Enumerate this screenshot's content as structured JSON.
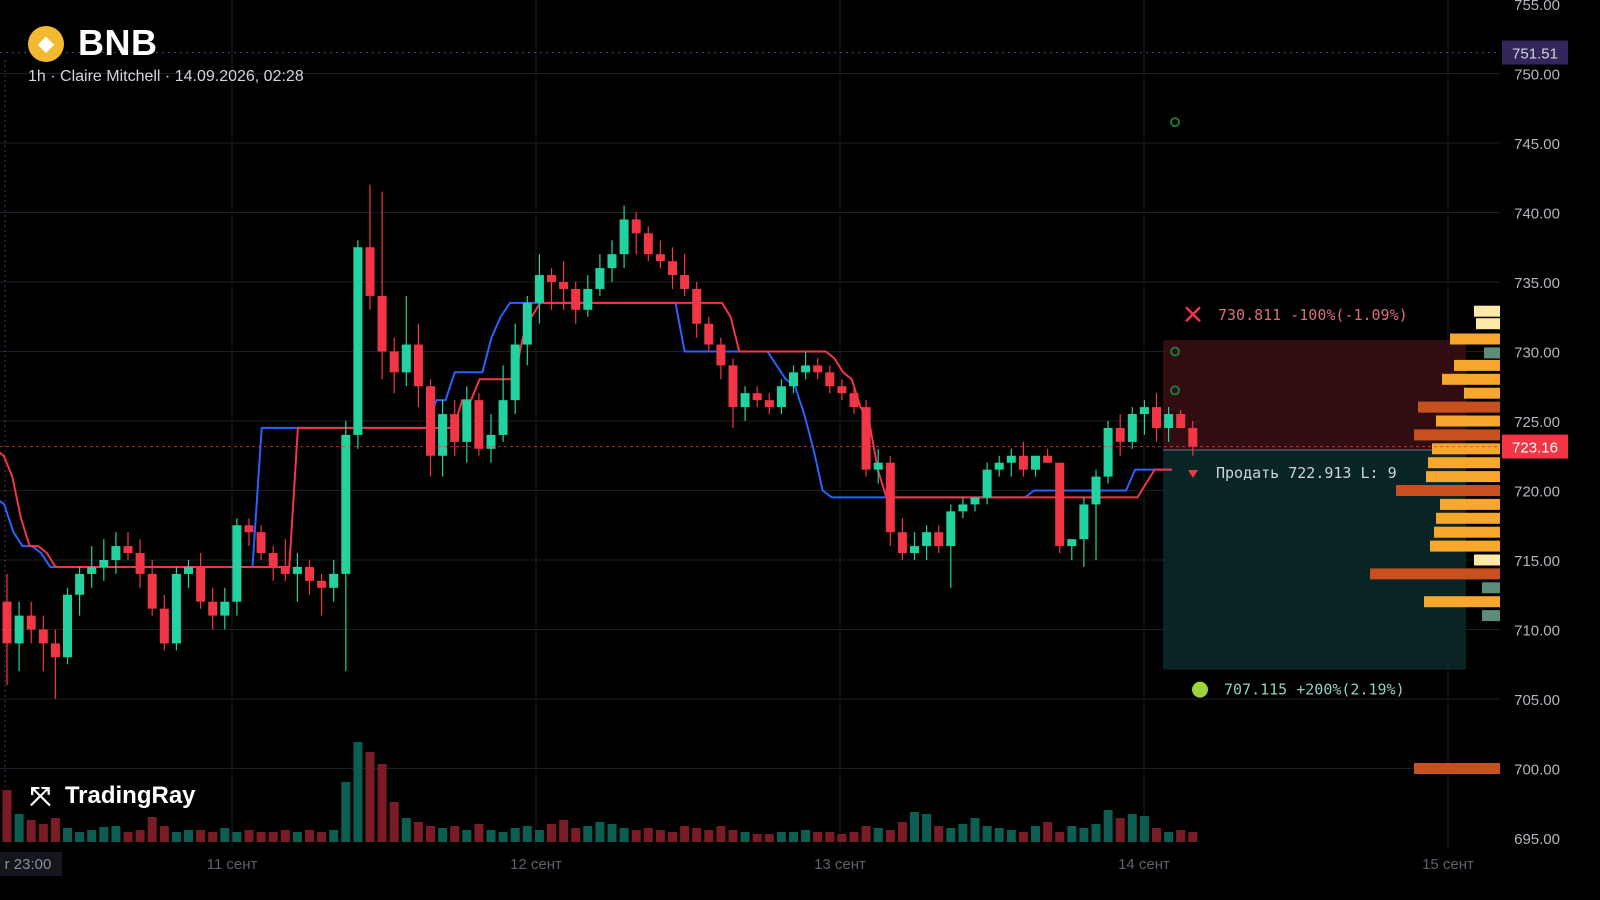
{
  "header": {
    "symbol": "BNB",
    "subtitle": "1h · Claire Mitchell · 14.09.2026, 02:28",
    "logo_icon": "binance-coin-icon"
  },
  "brand": {
    "name": "TradingRay",
    "icon": "tradingray-logo-icon"
  },
  "colors": {
    "up": "#089981",
    "down": "#f23645",
    "blue_line": "#2962ff",
    "red_line": "#f23645",
    "last_price_bg": "#f23645",
    "marker_bg": "#33265b",
    "stop_zone": "#3a0f14",
    "target_zone": "#0a2a2c"
  },
  "price_axis": {
    "ticks": [
      "755.00",
      "750.00",
      "745.00",
      "740.00",
      "735.00",
      "730.00",
      "725.00",
      "720.00",
      "715.00",
      "710.00",
      "705.00",
      "700.00",
      "695.00"
    ],
    "last_price_label": "723.16",
    "marker_label": "751.51"
  },
  "time_axis": {
    "labels": [
      "r 23:00",
      "11 сент",
      "12 сент",
      "13 сент",
      "14 сент",
      "15 сент"
    ]
  },
  "position": {
    "stop_text": "730.811 -100%(-1.09%)",
    "entry_text": "Продать 722.913 L: 9",
    "target_text": "707.115 +200%(2.19%)",
    "stop_icon": "close-x-icon",
    "target_icon": "apple-icon",
    "entry_icon": "triangle-down-icon"
  },
  "chart_data": {
    "type": "candlestick",
    "timeframe": "1h",
    "ylim": [
      695,
      755
    ],
    "ohlc": [
      [
        712.0,
        714.0,
        706.0,
        709.0
      ],
      [
        709.0,
        712.0,
        707.0,
        711.0
      ],
      [
        711.0,
        712.0,
        709.0,
        710.0
      ],
      [
        710.0,
        711.0,
        707.0,
        709.0
      ],
      [
        709.0,
        710.0,
        705.0,
        708.0
      ],
      [
        708.0,
        713.0,
        707.5,
        712.5
      ],
      [
        712.5,
        714.5,
        711.0,
        714.0
      ],
      [
        714.0,
        716.0,
        713.0,
        714.5
      ],
      [
        714.5,
        716.5,
        713.5,
        715.0
      ],
      [
        715.0,
        717.0,
        714.0,
        716.0
      ],
      [
        716.0,
        717.0,
        715.0,
        715.5
      ],
      [
        715.5,
        716.5,
        713.0,
        714.0
      ],
      [
        714.0,
        715.0,
        711.0,
        711.5
      ],
      [
        711.5,
        712.5,
        708.5,
        709.0
      ],
      [
        709.0,
        714.5,
        708.5,
        714.0
      ],
      [
        714.0,
        715.0,
        713.0,
        714.5
      ],
      [
        714.5,
        715.5,
        711.5,
        712.0
      ],
      [
        712.0,
        713.0,
        710.0,
        711.0
      ],
      [
        711.0,
        713.0,
        710.0,
        712.0
      ],
      [
        712.0,
        718.0,
        711.0,
        717.5
      ],
      [
        717.5,
        718.0,
        716.0,
        717.0
      ],
      [
        717.0,
        717.5,
        715.0,
        715.5
      ],
      [
        715.5,
        716.0,
        713.5,
        714.5
      ],
      [
        714.5,
        716.5,
        713.5,
        714.0
      ],
      [
        714.0,
        715.5,
        712.0,
        714.5
      ],
      [
        714.5,
        715.0,
        712.5,
        713.5
      ],
      [
        713.5,
        714.0,
        711.0,
        713.0
      ],
      [
        713.0,
        715.0,
        712.0,
        714.0
      ],
      [
        714.0,
        725.0,
        707.0,
        724.0
      ],
      [
        724.0,
        738.0,
        723.0,
        737.5
      ],
      [
        737.5,
        742.0,
        733.0,
        734.0
      ],
      [
        734.0,
        741.5,
        728.0,
        730.0
      ],
      [
        730.0,
        731.0,
        727.0,
        728.5
      ],
      [
        728.5,
        734.0,
        727.5,
        730.5
      ],
      [
        730.5,
        732.0,
        726.0,
        727.5
      ],
      [
        727.5,
        728.0,
        721.0,
        722.5
      ],
      [
        722.5,
        726.5,
        721.0,
        725.5
      ],
      [
        725.5,
        726.5,
        722.5,
        723.5
      ],
      [
        723.5,
        727.5,
        722.0,
        726.5
      ],
      [
        726.5,
        727.0,
        722.5,
        723.0
      ],
      [
        723.0,
        725.5,
        722.0,
        724.0
      ],
      [
        724.0,
        729.0,
        723.5,
        726.5
      ],
      [
        726.5,
        732.0,
        725.5,
        730.5
      ],
      [
        730.5,
        734.0,
        729.0,
        733.5
      ],
      [
        733.5,
        737.0,
        732.0,
        735.5
      ],
      [
        735.5,
        736.0,
        733.0,
        735.0
      ],
      [
        735.0,
        736.5,
        733.0,
        734.5
      ],
      [
        734.5,
        735.0,
        732.0,
        733.0
      ],
      [
        733.0,
        735.5,
        732.5,
        734.5
      ],
      [
        734.5,
        737.0,
        734.0,
        736.0
      ],
      [
        736.0,
        738.0,
        735.0,
        737.0
      ],
      [
        737.0,
        740.5,
        736.0,
        739.5
      ],
      [
        739.5,
        740.0,
        737.0,
        738.5
      ],
      [
        738.5,
        739.0,
        736.5,
        737.0
      ],
      [
        737.0,
        738.0,
        736.0,
        736.5
      ],
      [
        736.5,
        737.5,
        734.5,
        735.5
      ],
      [
        735.5,
        737.0,
        734.0,
        734.5
      ],
      [
        734.5,
        735.0,
        731.0,
        732.0
      ],
      [
        732.0,
        732.5,
        730.0,
        730.5
      ],
      [
        730.5,
        731.0,
        728.0,
        729.0
      ],
      [
        729.0,
        729.5,
        724.5,
        726.0
      ],
      [
        726.0,
        727.5,
        725.0,
        727.0
      ],
      [
        727.0,
        727.5,
        726.0,
        726.5
      ],
      [
        726.5,
        727.0,
        725.5,
        726.0
      ],
      [
        726.0,
        728.0,
        725.5,
        727.5
      ],
      [
        727.5,
        729.0,
        727.0,
        728.5
      ],
      [
        728.5,
        730.0,
        728.0,
        729.0
      ],
      [
        729.0,
        729.5,
        728.0,
        728.5
      ],
      [
        728.5,
        729.0,
        727.0,
        727.5
      ],
      [
        727.5,
        728.0,
        726.5,
        727.0
      ],
      [
        727.0,
        727.5,
        725.5,
        726.0
      ],
      [
        726.0,
        726.5,
        721.0,
        721.5
      ],
      [
        721.5,
        723.0,
        720.5,
        722.0
      ],
      [
        722.0,
        722.5,
        716.0,
        717.0
      ],
      [
        717.0,
        718.0,
        715.0,
        715.5
      ],
      [
        715.5,
        717.0,
        715.0,
        716.0
      ],
      [
        716.0,
        717.5,
        715.0,
        717.0
      ],
      [
        717.0,
        717.5,
        715.5,
        716.0
      ],
      [
        716.0,
        719.0,
        713.0,
        718.5
      ],
      [
        718.5,
        719.5,
        718.0,
        719.0
      ],
      [
        719.0,
        719.5,
        718.5,
        719.5
      ],
      [
        719.5,
        722.0,
        719.0,
        721.5
      ],
      [
        721.5,
        722.5,
        721.0,
        722.0
      ],
      [
        722.0,
        723.0,
        721.0,
        722.5
      ],
      [
        722.5,
        723.5,
        721.0,
        721.5
      ],
      [
        721.5,
        722.5,
        721.0,
        722.5
      ],
      [
        722.5,
        723.0,
        722.0,
        722.0
      ],
      [
        722.0,
        722.0,
        715.5,
        716.0
      ],
      [
        716.0,
        716.5,
        715.0,
        716.5
      ],
      [
        716.5,
        719.5,
        714.5,
        719.0
      ],
      [
        719.0,
        721.5,
        715.0,
        721.0
      ],
      [
        721.0,
        725.0,
        720.5,
        724.5
      ],
      [
        724.5,
        725.5,
        722.5,
        723.5
      ],
      [
        723.5,
        726.0,
        723.0,
        725.5
      ],
      [
        725.5,
        726.5,
        724.0,
        726.0
      ],
      [
        726.0,
        727.0,
        723.5,
        724.5
      ],
      [
        724.5,
        726.0,
        723.5,
        725.5
      ],
      [
        725.5,
        725.8,
        724.5,
        724.5
      ],
      [
        724.5,
        725.0,
        722.5,
        723.16
      ]
    ],
    "volume": [
      52,
      28,
      22,
      18,
      24,
      14,
      10,
      12,
      15,
      16,
      10,
      12,
      25,
      16,
      10,
      12,
      12,
      10,
      14,
      10,
      12,
      10,
      10,
      12,
      10,
      12,
      10,
      12,
      60,
      100,
      90,
      78,
      40,
      24,
      20,
      16,
      14,
      16,
      12,
      18,
      12,
      10,
      14,
      16,
      12,
      18,
      22,
      14,
      16,
      20,
      18,
      14,
      12,
      14,
      12,
      10,
      16,
      14,
      12,
      16,
      12,
      10,
      8,
      8,
      10,
      10,
      12,
      10,
      10,
      8,
      10,
      16,
      14,
      12,
      20,
      30,
      28,
      16,
      14,
      18,
      24,
      16,
      14,
      12,
      10,
      16,
      20,
      10,
      16,
      14,
      18,
      32,
      24,
      28,
      26,
      14,
      10,
      12,
      10,
      16,
      10,
      10,
      8
    ],
    "series": [
      {
        "values": [
          719.5,
          719.0,
          717.0,
          716.0,
          716.0,
          715.5,
          714.5,
          714.5,
          714.5,
          714.5,
          714.5,
          714.5,
          714.5,
          714.5,
          714.5,
          714.5,
          714.5,
          714.5,
          714.5,
          714.5,
          714.5,
          714.5,
          714.5,
          714.5,
          714.5,
          714.5,
          714.5,
          714.5,
          714.5,
          724.5,
          724.5,
          724.5,
          724.5,
          724.5,
          724.5,
          724.5,
          724.5,
          724.5,
          724.5,
          724.5,
          724.5,
          724.5,
          724.5,
          724.5,
          724.5,
          724.5,
          724.5,
          724.5,
          726.5,
          726.5,
          728.5,
          728.5,
          728.5,
          728.5,
          731.0,
          732.5,
          733.5,
          733.5,
          733.5,
          733.5,
          733.5,
          733.5,
          733.5,
          733.5,
          733.5,
          733.5,
          733.5,
          733.5,
          733.5,
          733.5,
          733.5,
          733.5,
          733.5,
          733.5,
          733.5,
          730.0,
          730.0,
          730.0,
          730.0,
          730.0,
          730.0,
          730.0,
          730.0,
          730.0,
          730.0,
          729.0,
          728.0,
          727.5,
          725.5,
          723.0,
          720.0,
          719.5,
          719.5,
          719.5,
          719.5,
          719.5,
          719.5,
          719.5,
          719.5,
          719.5,
          719.5,
          719.5,
          719.5,
          719.5,
          719.5,
          719.5,
          719.5,
          719.5,
          719.5,
          719.5,
          719.5,
          719.5,
          719.5,
          720.0,
          720.0,
          720.0,
          720.0,
          720.0,
          720.0,
          720.0,
          720.0,
          720.0,
          720.0,
          720.0,
          721.5,
          721.5,
          721.5,
          721.5,
          721.5
        ]
      },
      {
        "values": [
          723.0,
          722.5,
          721.0,
          718.0,
          716.0,
          716.0,
          715.5,
          714.5,
          714.5,
          714.5,
          714.5,
          714.5,
          714.5,
          714.5,
          714.5,
          714.5,
          714.5,
          714.5,
          714.5,
          714.5,
          714.5,
          714.5,
          714.5,
          714.5,
          714.5,
          714.5,
          714.5,
          714.5,
          714.5,
          714.5,
          714.5,
          714.5,
          714.5,
          714.5,
          714.5,
          724.5,
          724.5,
          724.5,
          724.5,
          724.5,
          724.5,
          724.5,
          724.5,
          724.5,
          724.5,
          724.5,
          724.5,
          724.5,
          724.5,
          724.5,
          724.5,
          724.5,
          724.5,
          724.5,
          726.5,
          726.5,
          728.0,
          728.0,
          728.0,
          728.0,
          728.0,
          731.0,
          732.5,
          733.5,
          733.5,
          733.5,
          733.5,
          733.5,
          733.5,
          733.5,
          733.5,
          733.5,
          733.5,
          733.5,
          733.5,
          733.5,
          733.5,
          733.5,
          733.5,
          733.5,
          733.5,
          733.5,
          733.5,
          733.5,
          733.5,
          732.5,
          730.0,
          730.0,
          730.0,
          730.0,
          730.0,
          730.0,
          730.0,
          730.0,
          730.0,
          730.0,
          730.0,
          729.5,
          728.5,
          728.0,
          726.0,
          725.0,
          721.5,
          719.5,
          719.5,
          719.5,
          719.5,
          719.5,
          719.5,
          719.5,
          719.5,
          719.5,
          719.5,
          719.5,
          719.5,
          719.5,
          719.5,
          719.5,
          719.5,
          719.5,
          719.5,
          719.5,
          719.5,
          719.5,
          719.5,
          719.5,
          719.5,
          719.5,
          719.5,
          719.5,
          719.5,
          719.5,
          719.5,
          720.5,
          721.5,
          721.5,
          721.5
        ]
      }
    ],
    "volume_profile": [
      {
        "price": 732.9,
        "width": 26,
        "color": "#ffe9a8"
      },
      {
        "price": 732.0,
        "width": 24,
        "color": "#ffe9a8"
      },
      {
        "price": 730.9,
        "width": 50,
        "color": "#f7a72b"
      },
      {
        "price": 729.9,
        "width": 16,
        "color": "#5e8c7a"
      },
      {
        "price": 729.0,
        "width": 46,
        "color": "#f7a72b"
      },
      {
        "price": 728.0,
        "width": 58,
        "color": "#f7a72b"
      },
      {
        "price": 727.0,
        "width": 36,
        "color": "#f7a72b"
      },
      {
        "price": 726.0,
        "width": 82,
        "color": "#c8501e"
      },
      {
        "price": 725.0,
        "width": 64,
        "color": "#f7a72b"
      },
      {
        "price": 724.0,
        "width": 86,
        "color": "#c8501e"
      },
      {
        "price": 723.0,
        "width": 68,
        "color": "#f7a72b"
      },
      {
        "price": 722.0,
        "width": 72,
        "color": "#f7a72b"
      },
      {
        "price": 721.0,
        "width": 74,
        "color": "#f7a72b"
      },
      {
        "price": 720.0,
        "width": 104,
        "color": "#c8501e"
      },
      {
        "price": 719.0,
        "width": 60,
        "color": "#f7a72b"
      },
      {
        "price": 718.0,
        "width": 64,
        "color": "#f7a72b"
      },
      {
        "price": 717.0,
        "width": 66,
        "color": "#f7a72b"
      },
      {
        "price": 716.0,
        "width": 70,
        "color": "#f7a72b"
      },
      {
        "price": 715.0,
        "width": 26,
        "color": "#ffe9a8"
      },
      {
        "price": 714.0,
        "width": 130,
        "color": "#c8501e"
      },
      {
        "price": 713.0,
        "width": 18,
        "color": "#5e8c7a"
      },
      {
        "price": 712.0,
        "width": 76,
        "color": "#f7a72b"
      },
      {
        "price": 711.0,
        "width": 18,
        "color": "#5e8c7a"
      },
      {
        "price": 700.0,
        "width": 86,
        "color": "#c8501e"
      }
    ]
  }
}
